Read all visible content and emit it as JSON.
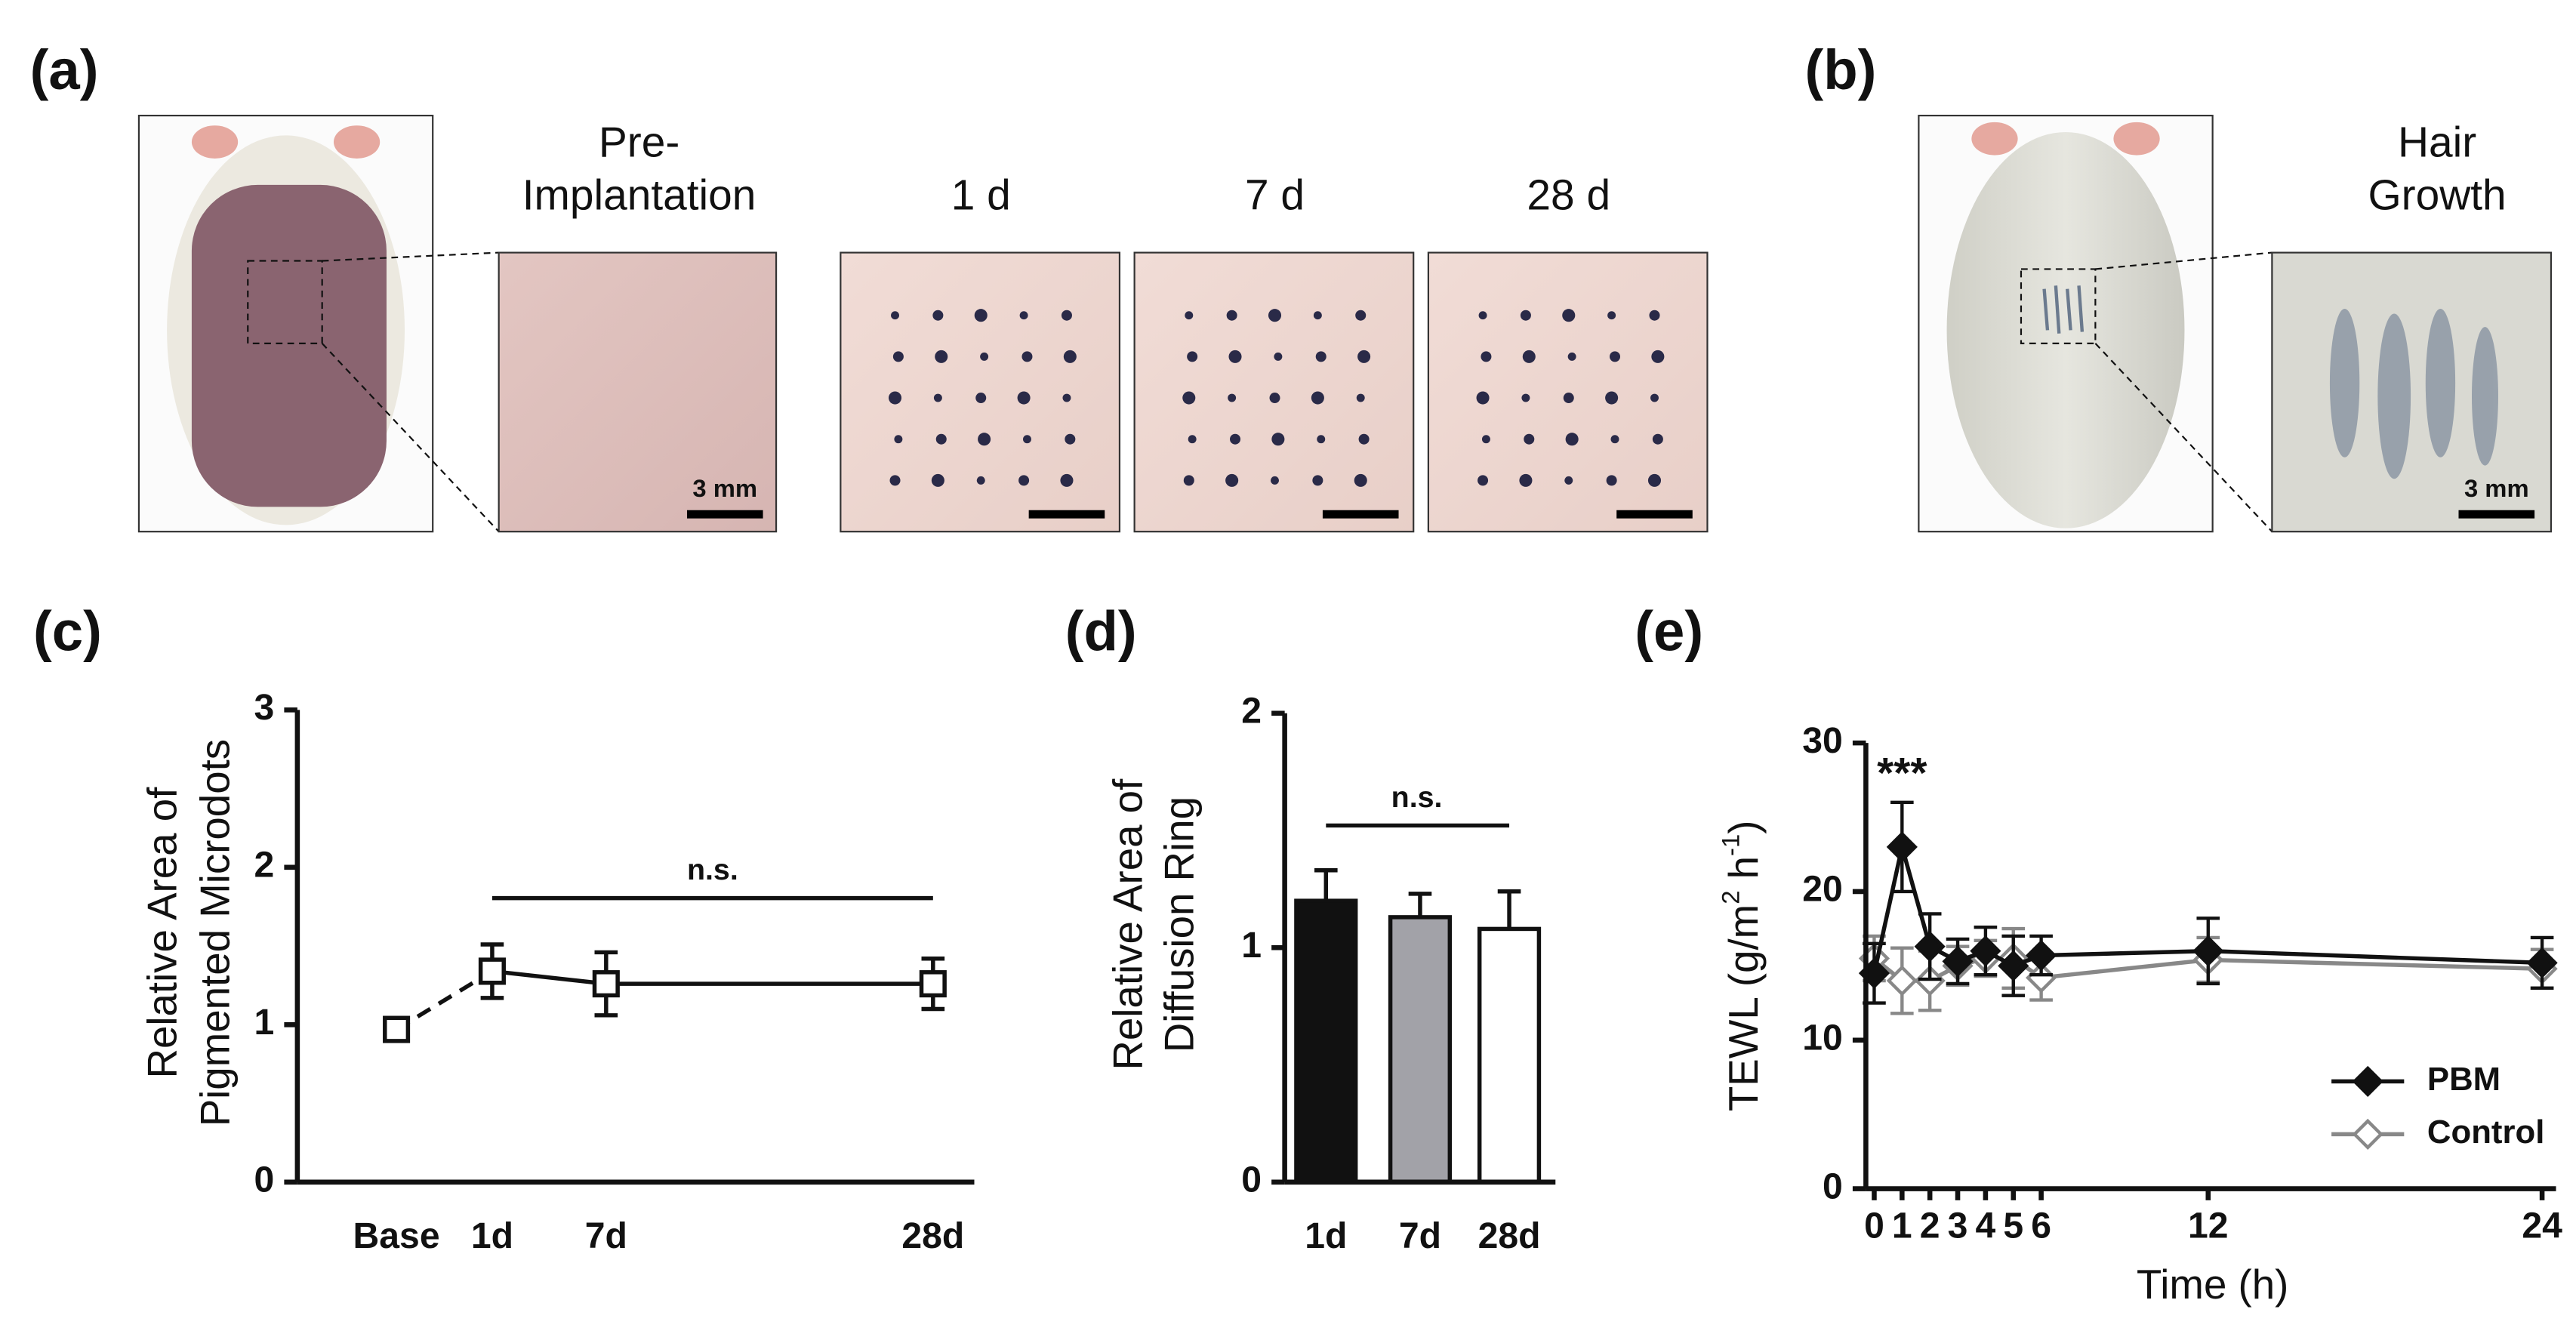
{
  "panels": {
    "a": {
      "label": "(a)",
      "pre_title": [
        "Pre-",
        "Implantation"
      ],
      "time_labels": [
        "1 d",
        "7 d",
        "28 d"
      ],
      "scale_bar": "3 mm"
    },
    "b": {
      "label": "(b)",
      "title": [
        "Hair",
        "Growth"
      ],
      "scale_bar": "3 mm"
    },
    "c": {
      "label": "(c)"
    },
    "d": {
      "label": "(d)"
    },
    "e": {
      "label": "(e)"
    }
  },
  "chart_data": [
    {
      "type": "line",
      "ylabel": [
        "Relative  Area of",
        "Pigmented Microdots"
      ],
      "categories": [
        "Base",
        "1d",
        "7d",
        "28d"
      ],
      "series": [
        {
          "color": "#111111",
          "values": [
            0.97,
            1.34,
            1.26,
            1.26
          ],
          "errors": [
            null,
            0.17,
            0.2,
            0.16
          ]
        }
      ],
      "segment_styles": [
        "dashed",
        "solid",
        "solid"
      ],
      "marker": "open-square",
      "ylim": [
        0,
        3
      ],
      "yticks": [
        0,
        1,
        2,
        3
      ],
      "annotation": "n.s."
    },
    {
      "type": "bar",
      "ylabel": [
        "Relative Area of",
        "Diffusion Ring"
      ],
      "categories": [
        "1d",
        "7d",
        "28d"
      ],
      "values": [
        1.2,
        1.13,
        1.08
      ],
      "errors": [
        0.13,
        0.1,
        0.16
      ],
      "colors": [
        "#111111",
        "#a2a2a8",
        "#ffffff"
      ],
      "ylim": [
        0,
        2
      ],
      "yticks": [
        0,
        1,
        2
      ],
      "annotation": "n.s."
    },
    {
      "type": "scatter-line",
      "ylabel": [
        "TEWL (g/m",
        "2",
        " h",
        "-1",
        ")"
      ],
      "xlabel": "Time (h)",
      "x": [
        0,
        1,
        2,
        3,
        4,
        5,
        6,
        12,
        24
      ],
      "series": [
        {
          "name": "PBM",
          "color": "#111111",
          "marker": "filled-diamond",
          "values": [
            14.5,
            23,
            16.3,
            15.3,
            16,
            15,
            15.7,
            16,
            15.2
          ],
          "errors": [
            2,
            3,
            2.2,
            1.5,
            1.6,
            2,
            1.3,
            2.2,
            1.7
          ]
        },
        {
          "name": "Control",
          "color": "#888888",
          "marker": "open-diamond",
          "values": [
            15.5,
            14,
            14,
            15,
            15.5,
            15.5,
            14.2,
            15.4,
            14.8
          ],
          "errors": [
            1.5,
            2.2,
            2,
            1.3,
            1.2,
            2,
            1.5,
            1.5,
            1.3
          ]
        }
      ],
      "xlim": [
        -0.3,
        24.5
      ],
      "xticks": [
        0,
        1,
        2,
        3,
        4,
        5,
        6,
        12,
        24
      ],
      "ylim": [
        0,
        30
      ],
      "yticks": [
        0,
        10,
        20,
        30
      ],
      "annotation": "***",
      "legend": "bottom-right"
    }
  ]
}
